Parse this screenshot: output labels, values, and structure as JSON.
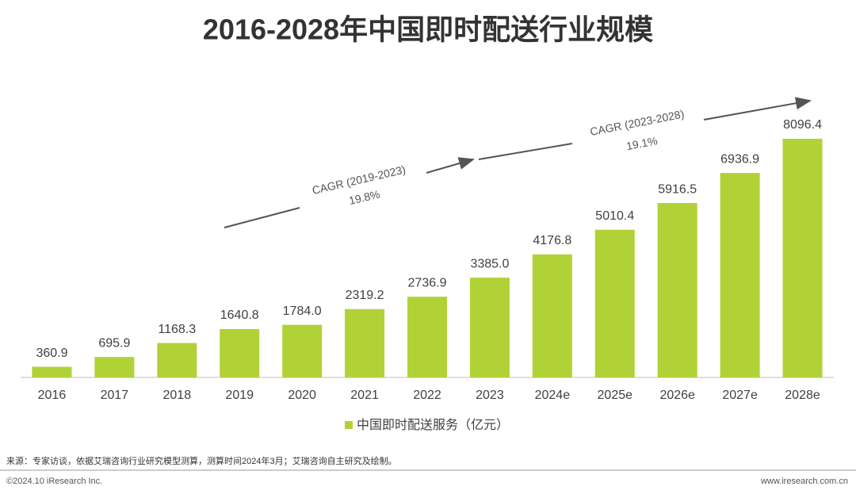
{
  "chart_data": {
    "type": "bar",
    "title": "2016-2028年中国即时配送行业规模",
    "categories": [
      "2016",
      "2017",
      "2018",
      "2019",
      "2020",
      "2021",
      "2022",
      "2023",
      "2024e",
      "2025e",
      "2026e",
      "2027e",
      "2028e"
    ],
    "series": [
      {
        "name": "中国即时配送服务（亿元）",
        "color": "#b1d236",
        "values": [
          360.9,
          695.9,
          1168.3,
          1640.8,
          1784.0,
          2319.2,
          2736.9,
          3385.0,
          4176.8,
          5010.4,
          5916.5,
          6936.9,
          8096.4
        ],
        "value_labels": [
          "360.9",
          "695.9",
          "1168.3",
          "1640.8",
          "1784.0",
          "2319.2",
          "2736.9",
          "3385.0",
          "4176.8",
          "5010.4",
          "5916.5",
          "6936.9",
          "8096.4"
        ]
      }
    ],
    "annotations": [
      {
        "text": "CAGR (2019-2023)",
        "rate": "19.8%"
      },
      {
        "text": "CAGR (2023-2028)",
        "rate": "19.1%"
      }
    ],
    "legend": "bottom"
  },
  "footer": {
    "source": "来源：专家访谈，依据艾瑞咨询行业研究模型测算，测算时间2024年3月；艾瑞咨询自主研究及绘制。",
    "copyright": "©2024.10 iResearch Inc.",
    "website": "www.iresearch.com.cn"
  }
}
